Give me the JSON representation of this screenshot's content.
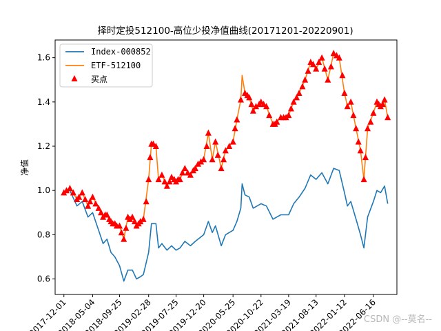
{
  "chart_data": {
    "type": "line",
    "title": "择时定投512100-高位少投净值曲线(20171201-20220901)",
    "xlabel": "",
    "ylabel": "净值",
    "ylim": [
      0.53,
      1.68
    ],
    "yticks": [
      "0.6",
      "0.8",
      "1.0",
      "1.2",
      "1.4",
      "1.6"
    ],
    "xticks": [
      "2017-12-01",
      "2018-05-04",
      "2018-09-25",
      "2019-02-28",
      "2019-07-25",
      "2019-12-20",
      "2020-05-25",
      "2020-10-22",
      "2021-03-19",
      "2021-08-13",
      "2022-01-12",
      "2022-06-16"
    ],
    "xlim": [
      "2017-10-15",
      "2022-10-20"
    ],
    "grid": false,
    "legend_position": "top-left",
    "series": [
      {
        "name": "Index-000852",
        "color": "#1f77b4",
        "x": [
          "2017-12-01",
          "2018-01-02",
          "2018-02-09",
          "2018-03-09",
          "2018-04-09",
          "2018-05-04",
          "2018-06-05",
          "2018-06-29",
          "2018-07-20",
          "2018-08-10",
          "2018-08-31",
          "2018-09-25",
          "2018-10-18",
          "2018-11-09",
          "2018-12-03",
          "2018-12-25",
          "2019-01-15",
          "2019-01-31",
          "2019-02-28",
          "2019-03-15",
          "2019-04-08",
          "2019-04-22",
          "2019-05-10",
          "2019-06-06",
          "2019-07-01",
          "2019-07-25",
          "2019-08-15",
          "2019-09-10",
          "2019-10-10",
          "2019-11-05",
          "2019-12-20",
          "2020-01-14",
          "2020-02-04",
          "2020-02-21",
          "2020-03-23",
          "2020-04-15",
          "2020-05-25",
          "2020-06-15",
          "2020-07-06",
          "2020-07-13",
          "2020-07-28",
          "2020-08-20",
          "2020-09-10",
          "2020-10-22",
          "2020-11-20",
          "2020-12-25",
          "2021-01-15",
          "2021-02-05",
          "2021-03-19",
          "2021-04-15",
          "2021-05-14",
          "2021-06-15",
          "2021-07-15",
          "2021-08-13",
          "2021-09-13",
          "2021-10-15",
          "2021-11-15",
          "2021-12-15",
          "2022-01-12",
          "2022-01-28",
          "2022-02-15",
          "2022-03-15",
          "2022-04-08",
          "2022-04-26",
          "2022-05-16",
          "2022-06-16",
          "2022-07-05",
          "2022-07-25",
          "2022-08-15",
          "2022-09-01"
        ],
        "values": [
          0.99,
          1.0,
          0.93,
          0.95,
          0.88,
          0.9,
          0.82,
          0.76,
          0.78,
          0.72,
          0.7,
          0.66,
          0.59,
          0.64,
          0.64,
          0.6,
          0.61,
          0.62,
          0.72,
          0.85,
          0.85,
          0.74,
          0.76,
          0.73,
          0.75,
          0.73,
          0.74,
          0.77,
          0.75,
          0.77,
          0.8,
          0.86,
          0.81,
          0.84,
          0.75,
          0.8,
          0.82,
          0.86,
          0.92,
          1.03,
          0.98,
          0.97,
          0.92,
          0.94,
          0.93,
          0.87,
          0.88,
          0.89,
          0.89,
          0.94,
          0.97,
          1.01,
          1.07,
          1.05,
          1.08,
          1.03,
          1.1,
          1.09,
          0.99,
          0.93,
          0.95,
          0.87,
          0.8,
          0.74,
          0.88,
          0.95,
          1.0,
          0.99,
          1.02,
          0.94
        ]
      },
      {
        "name": "ETF-512100",
        "color": "#ff7f0e",
        "x": [
          "2017-12-01",
          "2018-01-02",
          "2018-02-09",
          "2018-03-09",
          "2018-04-09",
          "2018-05-04",
          "2018-06-05",
          "2018-06-29",
          "2018-07-20",
          "2018-08-10",
          "2018-08-31",
          "2018-09-25",
          "2018-10-18",
          "2018-11-09",
          "2018-12-03",
          "2018-12-25",
          "2019-01-15",
          "2019-01-31",
          "2019-02-28",
          "2019-03-15",
          "2019-04-08",
          "2019-04-22",
          "2019-05-10",
          "2019-06-06",
          "2019-07-01",
          "2019-07-25",
          "2019-08-15",
          "2019-09-10",
          "2019-10-10",
          "2019-11-05",
          "2019-12-20",
          "2020-01-14",
          "2020-02-04",
          "2020-02-21",
          "2020-03-23",
          "2020-04-15",
          "2020-05-25",
          "2020-06-15",
          "2020-07-06",
          "2020-07-13",
          "2020-07-28",
          "2020-08-20",
          "2020-09-10",
          "2020-10-22",
          "2020-11-20",
          "2020-12-25",
          "2021-01-15",
          "2021-02-05",
          "2021-03-19",
          "2021-04-15",
          "2021-05-14",
          "2021-06-15",
          "2021-07-15",
          "2021-08-13",
          "2021-09-13",
          "2021-10-15",
          "2021-11-15",
          "2021-12-15",
          "2022-01-12",
          "2022-01-28",
          "2022-02-15",
          "2022-03-15",
          "2022-04-08",
          "2022-04-26",
          "2022-05-16",
          "2022-06-16",
          "2022-07-05",
          "2022-07-25",
          "2022-08-15",
          "2022-09-01"
        ],
        "values": [
          0.99,
          1.01,
          0.96,
          0.99,
          0.93,
          0.97,
          0.92,
          0.88,
          0.89,
          0.86,
          0.85,
          0.84,
          0.78,
          0.88,
          0.88,
          0.84,
          0.86,
          0.87,
          1.05,
          1.21,
          1.2,
          1.05,
          1.07,
          1.02,
          1.06,
          1.04,
          1.05,
          1.1,
          1.07,
          1.1,
          1.14,
          1.26,
          1.14,
          1.22,
          1.1,
          1.18,
          1.22,
          1.32,
          1.41,
          1.52,
          1.44,
          1.42,
          1.36,
          1.4,
          1.38,
          1.3,
          1.31,
          1.33,
          1.34,
          1.4,
          1.44,
          1.5,
          1.58,
          1.55,
          1.6,
          1.5,
          1.62,
          1.6,
          1.44,
          1.38,
          1.4,
          1.28,
          1.18,
          1.05,
          1.28,
          1.35,
          1.4,
          1.38,
          1.41,
          1.33
        ]
      }
    ],
    "buy_points": {
      "name": "买点",
      "color": "#ff0000",
      "marker": "triangle",
      "x": [
        "2017-12-01",
        "2017-12-15",
        "2018-01-02",
        "2018-01-20",
        "2018-02-09",
        "2018-02-20",
        "2018-03-09",
        "2018-03-25",
        "2018-04-09",
        "2018-04-20",
        "2018-05-04",
        "2018-05-20",
        "2018-06-05",
        "2018-06-18",
        "2018-06-29",
        "2018-07-10",
        "2018-07-20",
        "2018-08-01",
        "2018-08-10",
        "2018-08-20",
        "2018-08-31",
        "2018-09-10",
        "2018-09-25",
        "2018-10-05",
        "2018-10-18",
        "2018-10-30",
        "2018-11-09",
        "2018-11-20",
        "2018-12-03",
        "2018-12-15",
        "2018-12-25",
        "2019-01-05",
        "2019-01-15",
        "2019-01-31",
        "2019-02-15",
        "2019-02-28",
        "2019-03-08",
        "2019-03-15",
        "2019-03-25",
        "2019-04-08",
        "2019-04-22",
        "2019-05-10",
        "2019-05-25",
        "2019-06-06",
        "2019-06-20",
        "2019-07-01",
        "2019-07-15",
        "2019-07-25",
        "2019-08-05",
        "2019-08-15",
        "2019-08-28",
        "2019-09-10",
        "2019-09-25",
        "2019-10-10",
        "2019-10-25",
        "2019-11-05",
        "2019-11-20",
        "2019-12-05",
        "2019-12-20",
        "2020-01-05",
        "2020-01-14",
        "2020-02-04",
        "2020-02-21",
        "2020-03-05",
        "2020-03-23",
        "2020-04-05",
        "2020-04-15",
        "2020-05-05",
        "2020-05-25",
        "2020-06-05",
        "2020-06-15",
        "2020-07-06",
        "2020-07-28",
        "2020-08-10",
        "2020-08-20",
        "2020-09-01",
        "2020-09-10",
        "2020-09-25",
        "2020-10-12",
        "2020-10-22",
        "2020-11-05",
        "2020-11-20",
        "2020-12-05",
        "2020-12-25",
        "2021-01-05",
        "2021-01-15",
        "2021-02-05",
        "2021-02-20",
        "2021-03-05",
        "2021-03-19",
        "2021-04-01",
        "2021-04-15",
        "2021-05-01",
        "2021-05-14",
        "2021-06-01",
        "2021-06-15",
        "2021-07-01",
        "2021-07-15",
        "2021-07-28",
        "2021-08-13",
        "2021-08-28",
        "2021-09-13",
        "2021-09-28",
        "2021-10-15",
        "2021-11-01",
        "2021-11-15",
        "2021-12-01",
        "2021-12-15",
        "2022-01-01",
        "2022-01-12",
        "2022-01-28",
        "2022-02-15",
        "2022-03-01",
        "2022-03-15",
        "2022-03-28",
        "2022-04-08",
        "2022-04-26",
        "2022-05-05",
        "2022-05-16",
        "2022-06-01",
        "2022-06-16",
        "2022-07-05",
        "2022-07-15",
        "2022-07-25",
        "2022-08-05",
        "2022-08-15",
        "2022-09-01"
      ],
      "values": [
        0.99,
        1.0,
        1.01,
        0.99,
        0.96,
        0.97,
        0.99,
        0.96,
        0.93,
        0.95,
        0.97,
        0.94,
        0.92,
        0.9,
        0.88,
        0.89,
        0.89,
        0.87,
        0.86,
        0.85,
        0.85,
        0.84,
        0.84,
        0.81,
        0.78,
        0.83,
        0.88,
        0.87,
        0.88,
        0.86,
        0.84,
        0.85,
        0.86,
        0.87,
        0.95,
        1.05,
        1.15,
        1.21,
        1.21,
        1.2,
        1.05,
        1.07,
        1.04,
        1.02,
        1.04,
        1.06,
        1.05,
        1.04,
        1.05,
        1.05,
        1.08,
        1.1,
        1.08,
        1.07,
        1.09,
        1.1,
        1.12,
        1.13,
        1.14,
        1.2,
        1.26,
        1.14,
        1.22,
        1.16,
        1.1,
        1.14,
        1.18,
        1.2,
        1.22,
        1.28,
        1.32,
        1.41,
        1.44,
        1.43,
        1.42,
        1.39,
        1.36,
        1.38,
        1.39,
        1.4,
        1.39,
        1.38,
        1.34,
        1.3,
        1.3,
        1.31,
        1.33,
        1.33,
        1.33,
        1.34,
        1.37,
        1.4,
        1.42,
        1.44,
        1.47,
        1.5,
        1.54,
        1.58,
        1.57,
        1.55,
        1.58,
        1.6,
        1.55,
        1.5,
        1.56,
        1.62,
        1.61,
        1.6,
        1.52,
        1.44,
        1.38,
        1.4,
        1.34,
        1.28,
        1.22,
        1.18,
        1.05,
        1.15,
        1.28,
        1.31,
        1.35,
        1.4,
        1.39,
        1.38,
        1.39,
        1.41,
        1.33
      ]
    }
  },
  "watermark": "CSDN @--莫名--"
}
